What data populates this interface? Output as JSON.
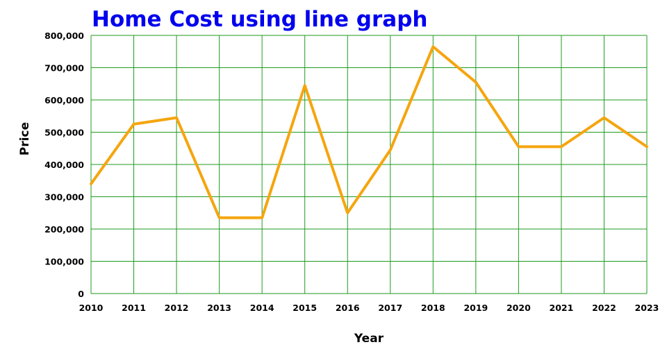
{
  "chart_data": {
    "type": "line",
    "title": "Home Cost using line graph",
    "xlabel": "Year",
    "ylabel": "Price",
    "x": [
      "2010",
      "2011",
      "2012",
      "2013",
      "2014",
      "2015",
      "2016",
      "2017",
      "2018",
      "2019",
      "2020",
      "2021",
      "2022",
      "2023"
    ],
    "y_ticks": [
      "0",
      "100,000",
      "200,000",
      "300,000",
      "400,000",
      "500,000",
      "600,000",
      "700,000",
      "800,000"
    ],
    "ylim": [
      0,
      800000
    ],
    "grid": true,
    "series": [
      {
        "values": [
          340000,
          525000,
          545000,
          235000,
          235000,
          645000,
          250000,
          445000,
          765000,
          655000,
          455000,
          455000,
          545000,
          455000
        ]
      }
    ],
    "colors": {
      "line": "#f5a50f",
      "grid": "#1e9a1e",
      "title": "#0000ee"
    }
  }
}
